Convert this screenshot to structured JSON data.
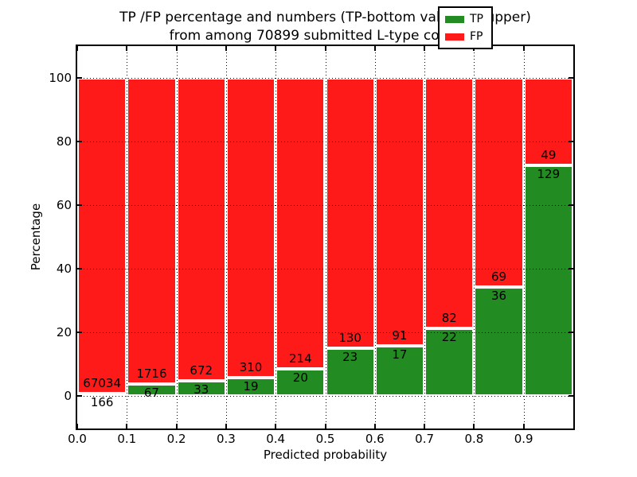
{
  "title": {
    "line1": "TP /FP percentage and numbers (TP-bottom value, FP-upper)",
    "line2": "from among 70899 submitted L-type contacts"
  },
  "chart_data": {
    "type": "bar",
    "subtype": "stacked-percentage",
    "title": "TP /FP percentage and numbers (TP-bottom value, FP-upper) from among 70899 submitted L-type contacts",
    "total_contacts": 70899,
    "categories": [
      "0.0-0.1",
      "0.1-0.2",
      "0.2-0.3",
      "0.3-0.4",
      "0.4-0.5",
      "0.5-0.6",
      "0.6-0.7",
      "0.7-0.8",
      "0.8-0.9",
      "0.9-1.0"
    ],
    "series": [
      {
        "name": "TP",
        "color": "#228B22",
        "counts": [
          166,
          67,
          33,
          19,
          20,
          23,
          17,
          22,
          36,
          129
        ]
      },
      {
        "name": "FP",
        "color": "#FF1A1A",
        "counts": [
          67034,
          1716,
          672,
          310,
          214,
          130,
          91,
          82,
          69,
          49
        ]
      }
    ],
    "tp_percentages": [
      0.25,
      3.76,
      4.68,
      5.78,
      8.55,
      15.03,
      15.74,
      21.15,
      34.29,
      72.47
    ],
    "xlabel": "Predicted probability",
    "ylabel": "Percentage",
    "xticks": [
      "0.0",
      "0.1",
      "0.2",
      "0.3",
      "0.4",
      "0.5",
      "0.6",
      "0.7",
      "0.8",
      "0.9"
    ],
    "yticks": [
      0,
      20,
      40,
      60,
      80,
      100
    ],
    "xlim": [
      0.0,
      1.0
    ],
    "ylim": [
      -10,
      110
    ],
    "grid": "dotted",
    "legend": {
      "position": "upper right",
      "entries": [
        {
          "label": "TP",
          "color": "#228B22"
        },
        {
          "label": "FP",
          "color": "#FF1A1A"
        }
      ]
    }
  }
}
